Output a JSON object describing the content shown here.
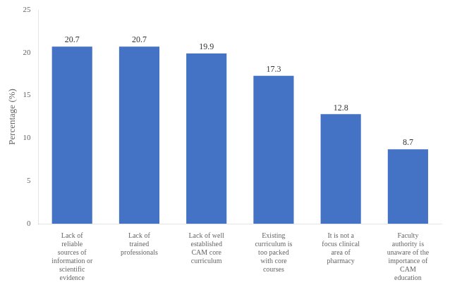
{
  "chart_data": {
    "type": "bar",
    "categories": [
      "Lack of\nreliable\nsources of\ninformation or\nscientific\nevidence",
      "Lack of\ntrained\nprofessionals",
      "Lack of well\nestablished\nCAM core\ncurriculum",
      "Existing\ncurriculum is\ntoo packed\nwith core\ncourses",
      "It is not a\nfocus clinical\narea of\npharmacy",
      "Faculty\nauthority is\nunaware of the\nimportance of\nCAM\neducation"
    ],
    "values": [
      20.7,
      20.7,
      19.9,
      17.3,
      12.8,
      8.7
    ],
    "color": "#4472C4",
    "ylabel": "Percentage (%)",
    "ylim": [
      0,
      25
    ],
    "yticks": [
      0,
      5,
      10,
      15,
      20,
      25
    ],
    "grid": false,
    "data_labels": true
  }
}
